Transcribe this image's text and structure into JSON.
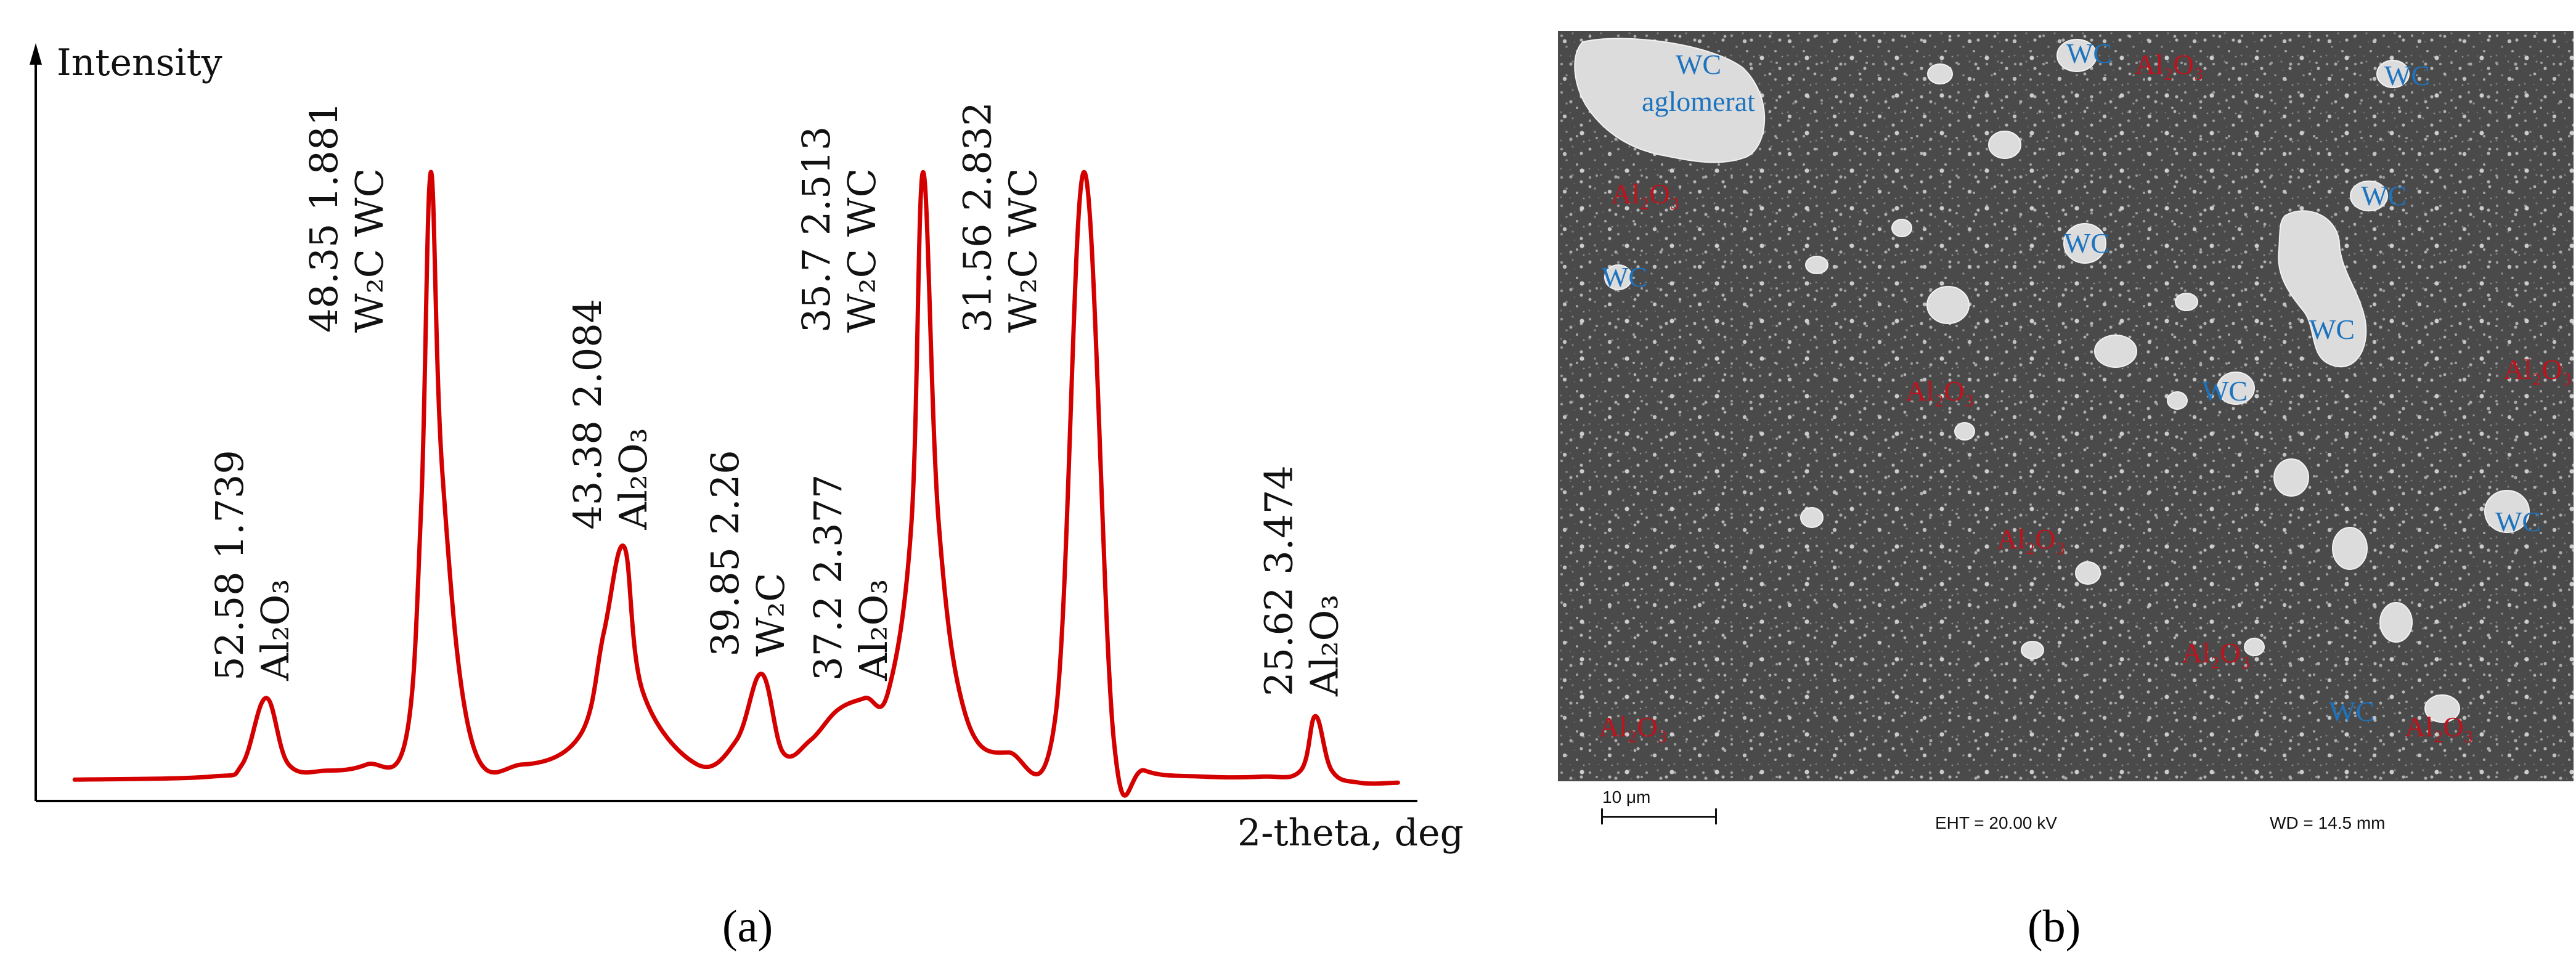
{
  "figure_a": {
    "caption": "(a)",
    "chart_data": {
      "type": "line",
      "title": "",
      "xlabel": "2-theta, deg",
      "ylabel": "Intensity",
      "x_axis_reversed": true,
      "xlim": [
        58.5,
        23.0
      ],
      "ylim": [
        0,
        105
      ],
      "grid": false,
      "series": [
        {
          "color": "#d40000",
          "x": [
            57.5,
            54.0,
            53.2,
            52.58,
            52.0,
            51.0,
            50.0,
            49.0,
            48.6,
            48.35,
            48.05,
            47.3,
            46.0,
            44.5,
            43.9,
            43.38,
            42.9,
            41.5,
            40.5,
            39.85,
            39.3,
            38.6,
            37.9,
            37.2,
            36.6,
            36.0,
            35.7,
            35.3,
            34.6,
            33.5,
            32.3,
            31.56,
            30.8,
            30.0,
            28.5,
            27.0,
            26.0,
            25.62,
            25.2,
            24.5,
            23.5
          ],
          "y": [
            1.5,
            2.0,
            4.0,
            15.0,
            4.0,
            3.0,
            4.0,
            8.0,
            46.0,
            102.0,
            52.0,
            8.0,
            4.0,
            9.0,
            26.0,
            40.0,
            16.0,
            4.0,
            8.0,
            19.0,
            6.0,
            8.0,
            13.0,
            15.0,
            16.0,
            44.0,
            102.0,
            44.0,
            12.0,
            6.0,
            12.0,
            102.0,
            8.0,
            3.0,
            2.0,
            2.0,
            3.0,
            12.0,
            3.0,
            1.0,
            1.0
          ]
        }
      ],
      "annotations": [
        {
          "x": 52.58,
          "line1": "52.58  1.739",
          "line2": "Al₂O₃"
        },
        {
          "x": 48.35,
          "line1": "48.35  1.881",
          "line2": "W₂C  WC"
        },
        {
          "x": 43.38,
          "line1": "43.38  2.084",
          "line2": "Al₂O₃"
        },
        {
          "x": 39.85,
          "line1": "39.85  2.26",
          "line2": "W₂C"
        },
        {
          "x": 37.2,
          "line1": "37.2  2.377",
          "line2": "Al₂O₃"
        },
        {
          "x": 35.7,
          "line1": "35.7  2.513",
          "line2": "W₂C  WC"
        },
        {
          "x": 31.56,
          "line1": "31.56  2.832",
          "line2": "W₂C  WC"
        },
        {
          "x": 25.62,
          "line1": "25.62  3.474",
          "line2": "Al₂O₃"
        }
      ]
    }
  },
  "figure_b": {
    "caption": "(b)",
    "labels": [
      {
        "text": "WC",
        "color": "#1e73be"
      },
      {
        "text": "aglomerat",
        "color": "#1e73be"
      },
      {
        "text": "WC",
        "color": "#1e73be"
      },
      {
        "text": "Al₂O₃",
        "color": "#c0121c"
      },
      {
        "text": "WC",
        "color": "#1e73be"
      },
      {
        "text": "Al₂O₃",
        "color": "#c0121c"
      },
      {
        "text": "WC",
        "color": "#1e73be"
      },
      {
        "text": "WC",
        "color": "#1e73be"
      },
      {
        "text": "WC",
        "color": "#1e73be"
      },
      {
        "text": "WC",
        "color": "#1e73be"
      },
      {
        "text": "Al₂O₃",
        "color": "#c0121c"
      },
      {
        "text": "Al₂O₃",
        "color": "#c0121c"
      },
      {
        "text": "WC",
        "color": "#1e73be"
      },
      {
        "text": "Al₂O₃",
        "color": "#c0121c"
      },
      {
        "text": "WC",
        "color": "#1e73be"
      },
      {
        "text": "Al₂O₃",
        "color": "#c0121c"
      },
      {
        "text": "Al₂O₃",
        "color": "#c0121c"
      },
      {
        "text": "WC",
        "color": "#1e73be"
      },
      {
        "text": "Al₂O₃",
        "color": "#c0121c"
      }
    ],
    "scale_bar_label": "10 μm",
    "eht": "EHT = 20.00 kV",
    "wd": "WD = 14.5 mm"
  }
}
